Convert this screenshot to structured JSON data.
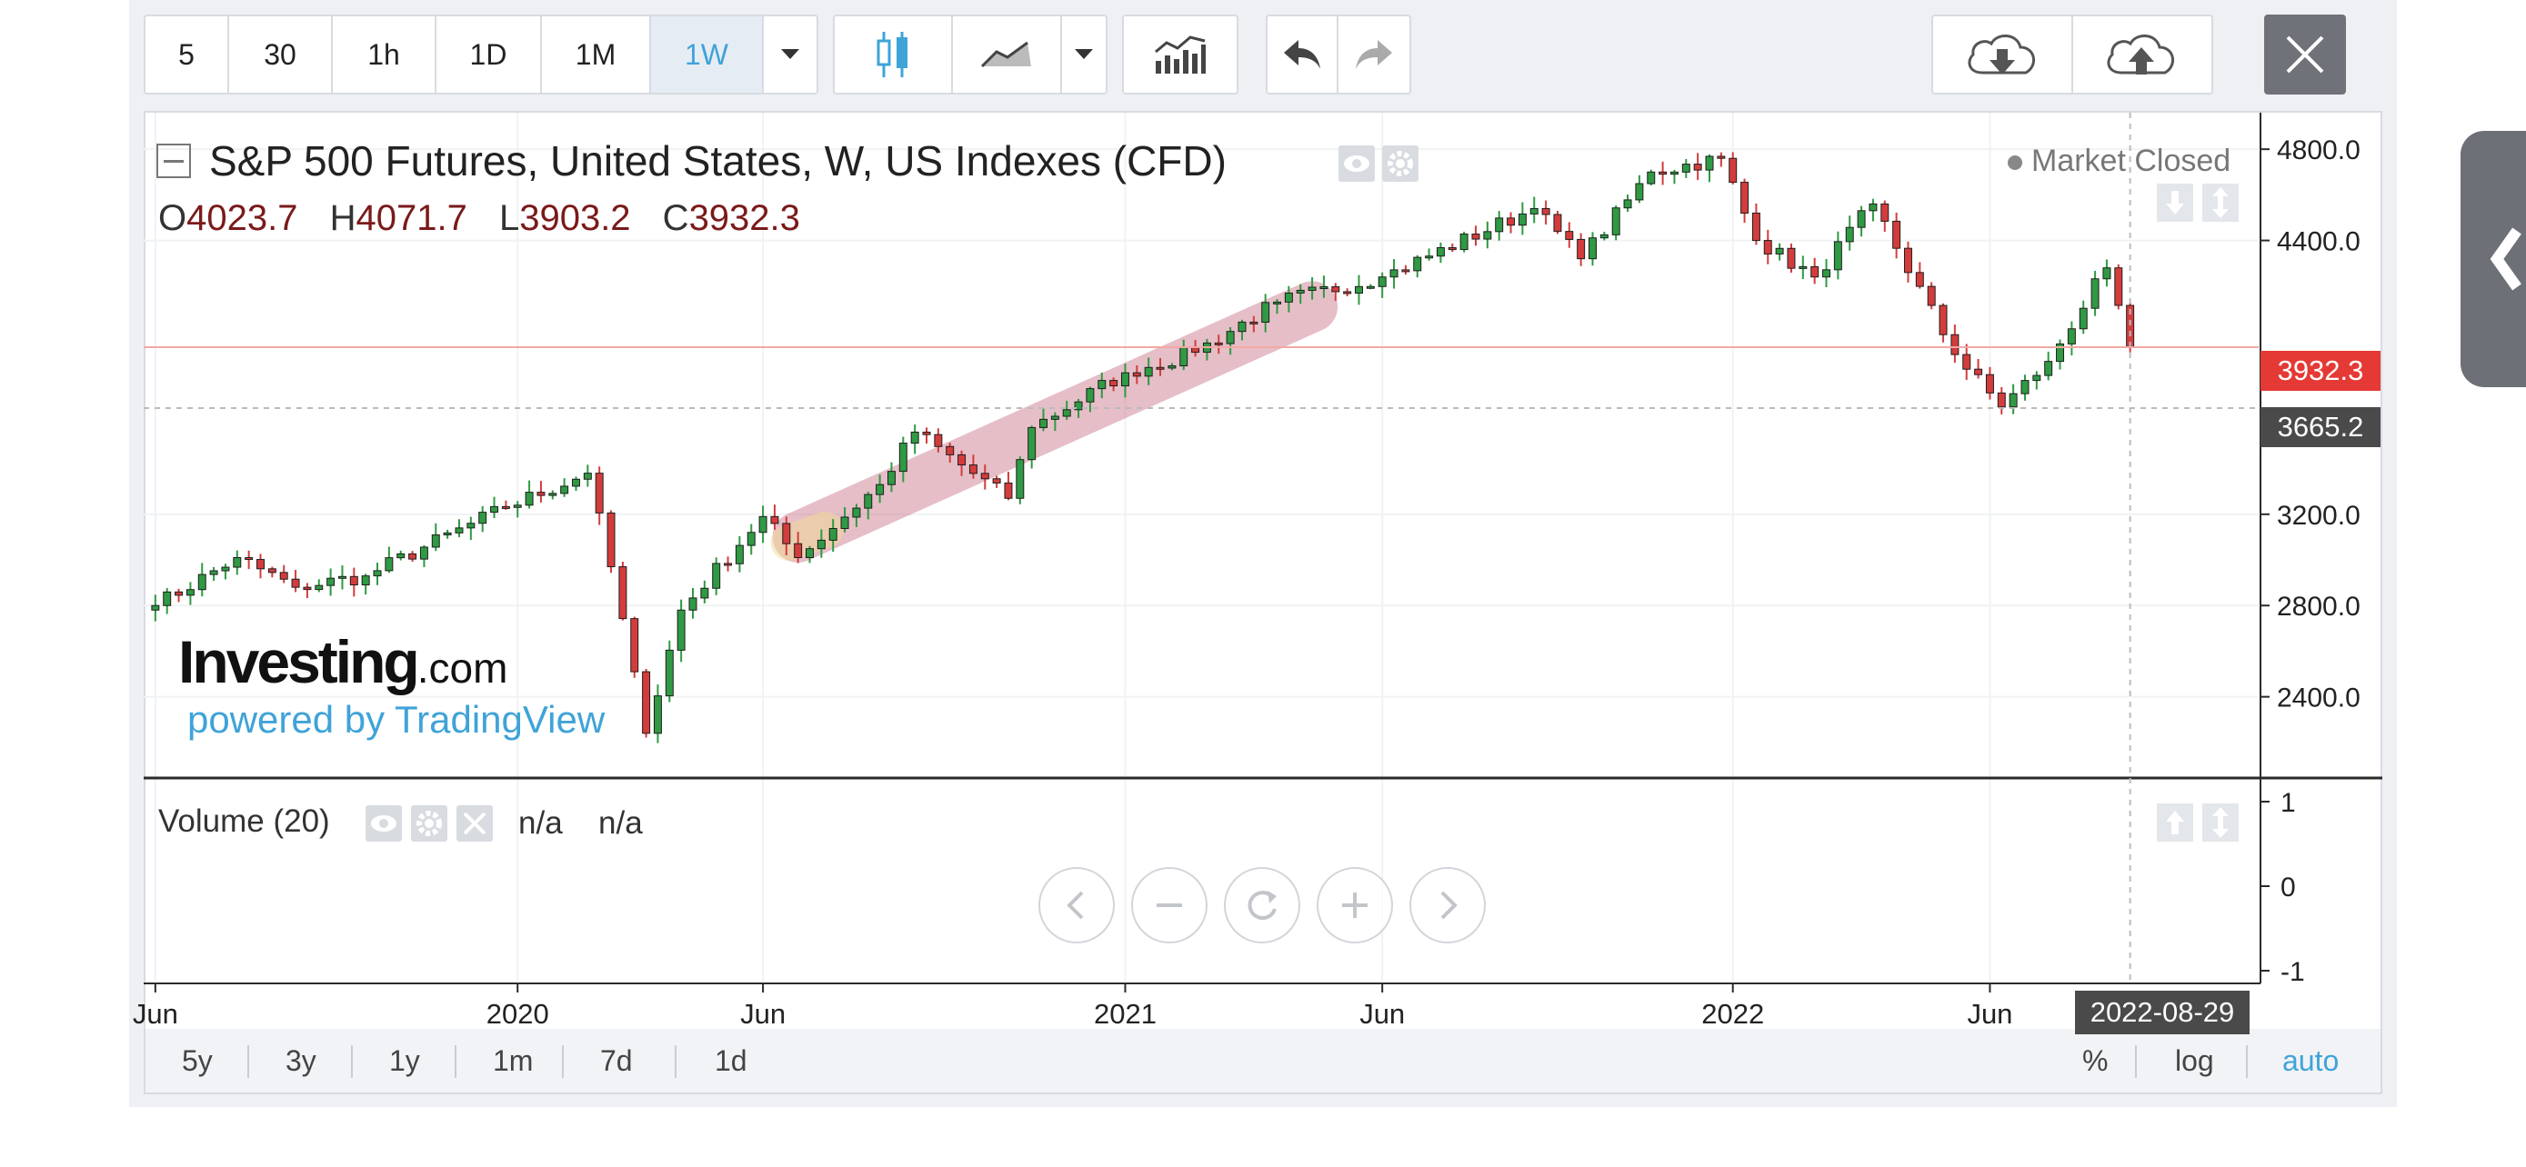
{
  "toolbar": {
    "intervals": [
      "5",
      "30",
      "1h",
      "1D",
      "1M",
      "1W"
    ],
    "active_interval": "1W"
  },
  "header": {
    "title": "S&P 500 Futures, United States, W, US Indexes (CFD)",
    "market_status": "Market Closed",
    "ohlc": {
      "o_label": "O",
      "o": "4023.7",
      "h_label": "H",
      "h": "4071.7",
      "l_label": "L",
      "l": "3903.2",
      "c_label": "C",
      "c": "3932.3"
    }
  },
  "watermark": {
    "brand": "Investing",
    "brand_suffix": ".com",
    "powered": "powered by TradingView"
  },
  "price_labels": {
    "last": "3932.3",
    "crosshair": "3665.2",
    "last_value": 3932.3,
    "crosshair_value": 3665.2
  },
  "volume": {
    "title": "Volume (20)",
    "v1": "n/a",
    "v2": "n/a",
    "axis": [
      "1",
      "0",
      "-1"
    ]
  },
  "crosshair_date": "2022-08-29",
  "ranges": [
    "5y",
    "3y",
    "1y",
    "1m",
    "7d",
    "1d"
  ],
  "scale_options": {
    "percent": "%",
    "log": "log",
    "auto": "auto"
  },
  "colors": {
    "up": "#2f9a43",
    "down": "#d43c3c",
    "accent": "#3fa3d8",
    "last_label": "#e53935",
    "cross_label": "#4a4a4a"
  },
  "chart_data": {
    "type": "candlestick",
    "title": "S&P 500 Futures, United States, W, US Indexes (CFD)",
    "y_ticks": [
      4800.0,
      4400.0,
      3200.0,
      2800.0,
      2400.0
    ],
    "y_tick_labels": [
      "4800.0",
      "4400.0",
      "3200.0",
      "2800.0",
      "2400.0"
    ],
    "ylim": [
      2060,
      4960
    ],
    "x_ticks": [
      "Jun",
      "2020",
      "Jun",
      "2021",
      "Jun",
      "2022",
      "Jun"
    ],
    "x_tick_dates": [
      "2019-06-03",
      "2020-01-06",
      "2020-06-01",
      "2021-01-04",
      "2021-06-07",
      "2022-01-03",
      "2022-06-06"
    ],
    "xlim": [
      "2019-05-27",
      "2022-11-14"
    ],
    "weekly_close_anchors": [
      [
        "2019-06-03",
        2800
      ],
      [
        "2019-07-22",
        3010
      ],
      [
        "2019-08-26",
        2880
      ],
      [
        "2019-10-07",
        2930
      ],
      [
        "2019-12-30",
        3230
      ],
      [
        "2020-02-17",
        3380
      ],
      [
        "2020-03-02",
        2970
      ],
      [
        "2020-03-23",
        2240
      ],
      [
        "2020-04-13",
        2780
      ],
      [
        "2020-06-01",
        3190
      ],
      [
        "2020-06-22",
        3010
      ],
      [
        "2020-08-10",
        3330
      ],
      [
        "2020-08-31",
        3560
      ],
      [
        "2020-10-26",
        3270
      ],
      [
        "2020-11-09",
        3580
      ],
      [
        "2021-01-04",
        3820
      ],
      [
        "2021-02-15",
        3910
      ],
      [
        "2021-04-05",
        4130
      ],
      [
        "2021-06-07",
        4240
      ],
      [
        "2021-09-06",
        4540
      ],
      [
        "2021-10-04",
        4320
      ],
      [
        "2021-11-15",
        4700
      ],
      [
        "2021-12-27",
        4760
      ],
      [
        "2022-01-17",
        4400
      ],
      [
        "2022-02-21",
        4240
      ],
      [
        "2022-03-28",
        4560
      ],
      [
        "2022-05-16",
        3900
      ],
      [
        "2022-06-13",
        3670
      ],
      [
        "2022-07-11",
        3870
      ],
      [
        "2022-08-15",
        4280
      ],
      [
        "2022-08-29",
        3932.3
      ]
    ]
  }
}
